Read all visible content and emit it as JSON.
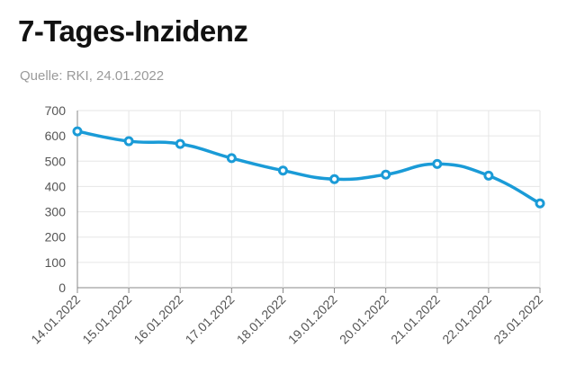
{
  "header": {
    "title": "7-Tages-Inzidenz",
    "source": "Quelle: RKI, 24.01.2022"
  },
  "chart_data": {
    "type": "line",
    "title": "7-Tages-Inzidenz",
    "x": [
      "14.01.2022",
      "15.01.2022",
      "16.01.2022",
      "17.01.2022",
      "18.01.2022",
      "19.01.2022",
      "20.01.2022",
      "21.01.2022",
      "22.01.2022",
      "23.01.2022"
    ],
    "series": [
      {
        "values": [
          618,
          579,
          568,
          512,
          463,
          429,
          447,
          489,
          443,
          333
        ]
      }
    ],
    "ylim": [
      0,
      700
    ],
    "yticks": [
      0,
      100,
      200,
      300,
      400,
      500,
      600,
      700
    ],
    "grid": true,
    "colors": {
      "line": "#1a9bd7",
      "grid": "#e6e6e6",
      "axis": "#888888"
    }
  }
}
